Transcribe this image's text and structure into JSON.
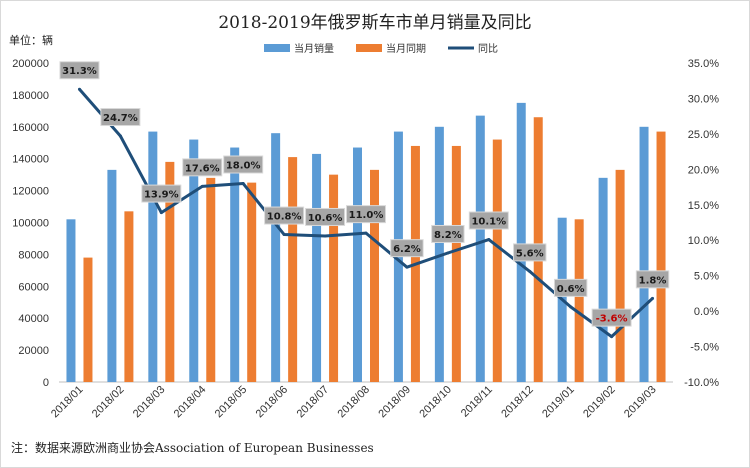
{
  "chart_data": {
    "type": "bar",
    "title": "2018-2019年俄罗斯车市单月销量及同比",
    "unit_label": "单位：辆",
    "categories": [
      "2018/01",
      "2018/02",
      "2018/03",
      "2018/04",
      "2018/05",
      "2018/06",
      "2018/07",
      "2018/08",
      "2018/09",
      "2018/10",
      "2018/11",
      "2018/12",
      "2019/01",
      "2019/02",
      "2019/03"
    ],
    "series": [
      {
        "name": "当月销量",
        "type": "bar",
        "axis": "left",
        "color": "#5b9bd5",
        "values": [
          102000,
          133000,
          157000,
          152000,
          147000,
          156000,
          143000,
          147000,
          157000,
          160000,
          167000,
          175000,
          103000,
          128000,
          160000
        ]
      },
      {
        "name": "当月同期",
        "type": "bar",
        "axis": "left",
        "color": "#ed7d31",
        "values": [
          78000,
          107000,
          138000,
          128000,
          125000,
          141000,
          130000,
          133000,
          148000,
          148000,
          152000,
          166000,
          102000,
          133000,
          157000
        ]
      },
      {
        "name": "同比",
        "type": "line",
        "axis": "right",
        "color": "#1f4e79",
        "values": [
          31.3,
          24.7,
          13.9,
          17.6,
          18.0,
          10.8,
          10.6,
          11.0,
          6.2,
          8.2,
          10.1,
          5.6,
          0.6,
          -3.6,
          1.8
        ],
        "labels": [
          "31.3%",
          "24.7%",
          "13.9%",
          "17.6%",
          "18.0%",
          "10.8%",
          "10.6%",
          "11.0%",
          "6.2%",
          "8.2%",
          "10.1%",
          "5.6%",
          "0.6%",
          "-3.6%",
          "1.8%"
        ]
      }
    ],
    "y_left": {
      "min": 0,
      "max": 200000,
      "step": 20000,
      "ticks": [
        "0",
        "20000",
        "40000",
        "60000",
        "80000",
        "100000",
        "120000",
        "140000",
        "160000",
        "180000",
        "200000"
      ]
    },
    "y_right": {
      "min": -10,
      "max": 35,
      "step": 5,
      "ticks": [
        "-10.0%",
        "-5.0%",
        "0.0%",
        "5.0%",
        "10.0%",
        "15.0%",
        "20.0%",
        "25.0%",
        "30.0%",
        "35.0%"
      ]
    },
    "legend_position": "top-center",
    "grid": false,
    "note": "注：数据来源欧洲商业协会Association of European Businesses"
  }
}
